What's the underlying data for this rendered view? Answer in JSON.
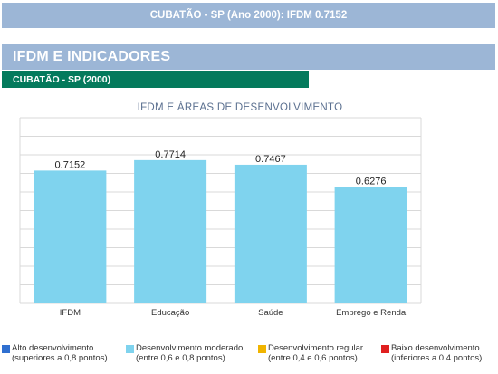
{
  "header": {
    "title": "CUBATÃO - SP (Ano 2000): IFDM 0.7152"
  },
  "section": {
    "title": "IFDM E INDICADORES",
    "subtitle": "CUBATÃO - SP (2000)"
  },
  "chart_data": {
    "type": "bar",
    "title": "IFDM E ÁREAS DE DESENVOLVIMENTO",
    "categories": [
      "IFDM",
      "Educação",
      "Saúde",
      "Emprego e Renda"
    ],
    "values": [
      0.7152,
      0.7714,
      0.7467,
      0.6276
    ],
    "data_labels": [
      "0.7152",
      "0.7714",
      "0.7467",
      "0.6276"
    ],
    "ylim": [
      0,
      1
    ],
    "grid": true,
    "bar_color": "#7fd3ee",
    "legend_position": "bottom"
  },
  "legend": {
    "items": [
      {
        "label": "Alto desenvolvimento",
        "range": "(superiores a 0,8 pontos)",
        "color": "#2f6fd0"
      },
      {
        "label": "Desenvolvimento moderado",
        "range": "(entre 0,6 e 0,8 pontos)",
        "color": "#7fd3ee"
      },
      {
        "label": "Desenvolvimento regular",
        "range": "(entre 0,4 e 0,6 pontos)",
        "color": "#f0b400"
      },
      {
        "label": "Baixo desenvolvimento",
        "range": "(inferiores a 0,4 pontos)",
        "color": "#e02020"
      }
    ]
  }
}
